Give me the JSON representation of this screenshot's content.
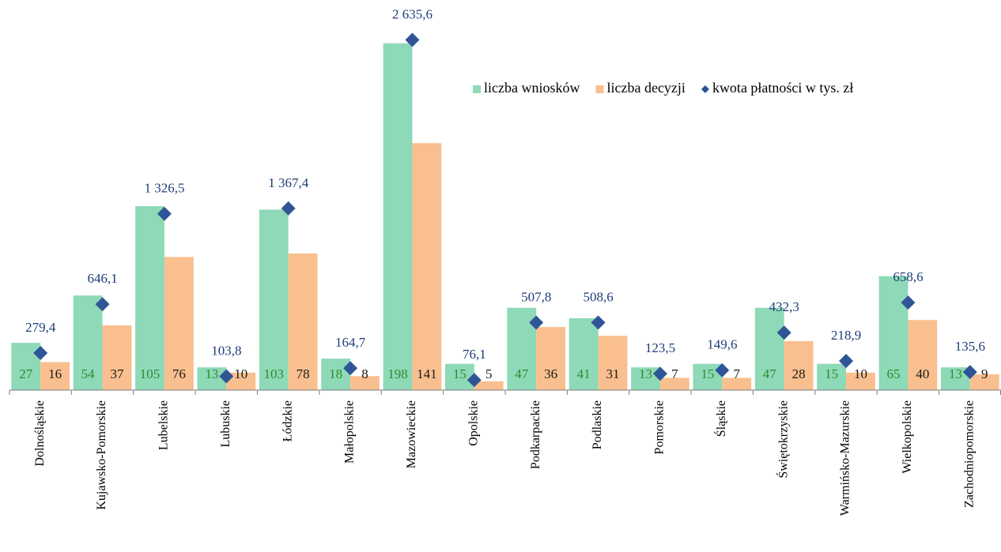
{
  "chart_data": {
    "type": "bar",
    "categories": [
      "Dolnośląskie",
      "Kujawsko-Pomorskie",
      "Lubelskie",
      "Lubuskie",
      "Łódzkie",
      "Małopolskie",
      "Mazowieckie",
      "Opolskie",
      "Podkarpackie",
      "Podlaskie",
      "Pomorskie",
      "Śląskie",
      "Świętokrzyskie",
      "Warmińsko-Mazurskie",
      "Wielkopolskie",
      "Zachodniopomorskie"
    ],
    "series": [
      {
        "name": "liczba wniosków",
        "type": "bar",
        "color": "#8ed9b7",
        "label_color": "#2e8b2e",
        "values": [
          27,
          54,
          105,
          13,
          103,
          18,
          198,
          15,
          47,
          41,
          13,
          15,
          47,
          15,
          65,
          13
        ]
      },
      {
        "name": "liczba decyzji",
        "type": "bar",
        "color": "#f9bf8f",
        "label_color": "#1a1a1a",
        "values": [
          16,
          37,
          76,
          10,
          78,
          8,
          141,
          5,
          36,
          31,
          7,
          7,
          28,
          10,
          40,
          9
        ]
      },
      {
        "name": "kwota płatności w tys. zł",
        "type": "scatter",
        "marker": "diamond",
        "axis": "y2",
        "color": "#2f5597",
        "label_color": "#1f3d7a",
        "values": [
          279.4,
          646.1,
          1326.5,
          103.8,
          1367.4,
          164.7,
          2635.6,
          76.1,
          507.8,
          508.6,
          123.5,
          149.6,
          432.3,
          218.9,
          658.6,
          135.6
        ],
        "value_labels": [
          "279,4",
          "646,1",
          "1 326,5",
          "103,8",
          "1 367,4",
          "164,7",
          "2 635,6",
          "76,1",
          "507,8",
          "508,6",
          "123,5",
          "149,6",
          "432,3",
          "218,9",
          "658,6",
          "135,6"
        ]
      }
    ],
    "ylim": [
      0,
      220
    ],
    "y2lim": [
      0,
      2900
    ],
    "legend": "top-right"
  }
}
